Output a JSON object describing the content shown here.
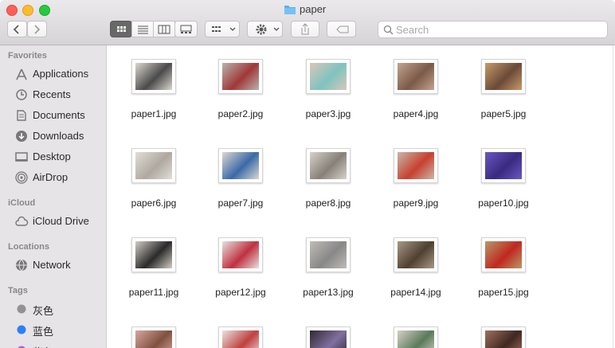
{
  "window": {
    "title": "paper"
  },
  "toolbar": {
    "search_placeholder": "Search"
  },
  "sidebar": {
    "sections": [
      {
        "title": "Favorites",
        "items": [
          "Applications",
          "Recents",
          "Documents",
          "Downloads",
          "Desktop",
          "AirDrop"
        ]
      },
      {
        "title": "iCloud",
        "items": [
          "iCloud Drive"
        ]
      },
      {
        "title": "Locations",
        "items": [
          "Network"
        ]
      },
      {
        "title": "Tags",
        "items": [
          "灰色",
          "蓝色",
          "紫色"
        ]
      }
    ]
  },
  "files": [
    "paper1.jpg",
    "paper2.jpg",
    "paper3.jpg",
    "paper4.jpg",
    "paper5.jpg",
    "paper6.jpg",
    "paper7.jpg",
    "paper8.jpg",
    "paper9.jpg",
    "paper10.jpg",
    "paper11.jpg",
    "paper12.jpg",
    "paper13.jpg",
    "paper14.jpg",
    "paper15.jpg"
  ]
}
